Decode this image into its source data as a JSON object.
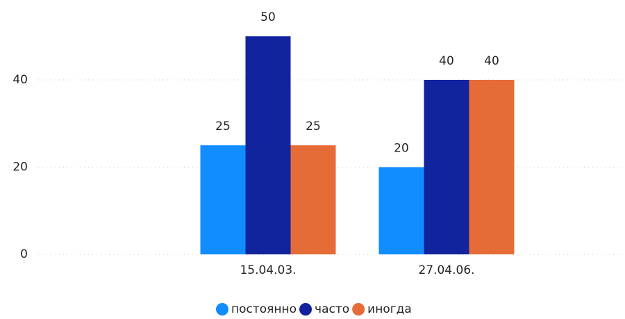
{
  "chart_data": {
    "type": "bar",
    "categories": [
      "15.04.03.",
      "27.04.06."
    ],
    "series": [
      {
        "name": "постоянно",
        "color": "#118DFF",
        "values": [
          25,
          20
        ]
      },
      {
        "name": "часто",
        "color": "#12239E",
        "values": [
          50,
          40
        ]
      },
      {
        "name": "иногда",
        "color": "#E66C37",
        "values": [
          25,
          40
        ]
      }
    ],
    "ylim": [
      0,
      58
    ],
    "yticks": [
      0,
      20,
      40
    ],
    "grid": true,
    "legend": "bottom"
  }
}
